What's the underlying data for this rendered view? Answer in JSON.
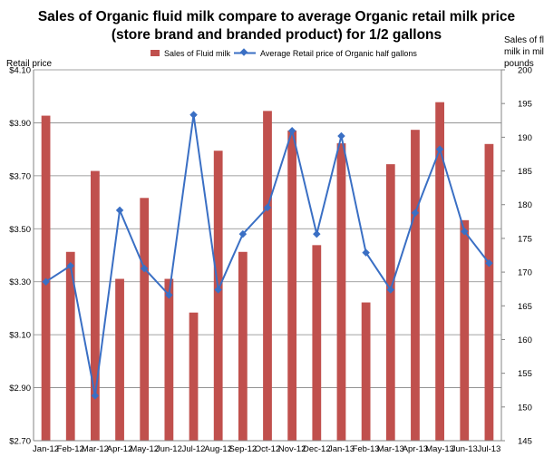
{
  "chart_data": {
    "type": "bar+line",
    "title_lines": [
      "Sales of Organic fluid milk compare to average Organic retail milk price",
      "(store brand and branded product) for 1/2 gallons"
    ],
    "categories": [
      "Jan-12",
      "Feb-12",
      "Mar-12",
      "Apr-12",
      "May-12",
      "Jun-12",
      "Jul-12",
      "Aug-12",
      "Sep-12",
      "Oct-12",
      "Nov-12",
      "Dec-12",
      "Jan-13",
      "Feb-13",
      "Mar-13",
      "Apr-13",
      "May-13",
      "Jun-13",
      "Jul-13"
    ],
    "left_axis": {
      "label": "Retail price",
      "ylim": [
        2.7,
        4.1
      ],
      "ticks": [
        2.7,
        2.9,
        3.1,
        3.3,
        3.5,
        3.7,
        3.9,
        4.1
      ],
      "tick_labels": [
        "$2.70",
        "$2.90",
        "$3.10",
        "$3.30",
        "$3.50",
        "$3.70",
        "$3.90",
        "$4.10"
      ]
    },
    "right_axis": {
      "label_lines": [
        "Sales of fluid",
        "milk in millions",
        "pounds"
      ],
      "ylim": [
        145,
        200
      ],
      "ticks": [
        145,
        150,
        155,
        160,
        165,
        170,
        175,
        180,
        185,
        190,
        195,
        200
      ],
      "tick_labels": [
        "145",
        "150",
        "155",
        "160",
        "165",
        "170",
        "175",
        "180",
        "185",
        "190",
        "195",
        "200"
      ]
    },
    "series": [
      {
        "name": "Sales of Fluid milk",
        "kind": "bar",
        "axis": "right",
        "color": "#c0504d",
        "values": [
          193.2,
          173.0,
          185.0,
          169.0,
          181.0,
          169.0,
          164.0,
          188.0,
          173.0,
          193.9,
          191.0,
          174.0,
          189.1,
          165.5,
          186.0,
          191.1,
          195.2,
          177.7,
          189.0
        ]
      },
      {
        "name": "Average Retail price of Organic half gallons",
        "kind": "line",
        "axis": "left",
        "color": "#3a6fc4",
        "values": [
          3.3,
          3.36,
          2.87,
          3.57,
          3.35,
          3.25,
          3.93,
          3.27,
          3.48,
          3.58,
          3.87,
          3.48,
          3.85,
          3.41,
          3.27,
          3.56,
          3.8,
          3.49,
          3.37
        ]
      }
    ],
    "legend_position": "top-center",
    "grid": "horizontal"
  }
}
